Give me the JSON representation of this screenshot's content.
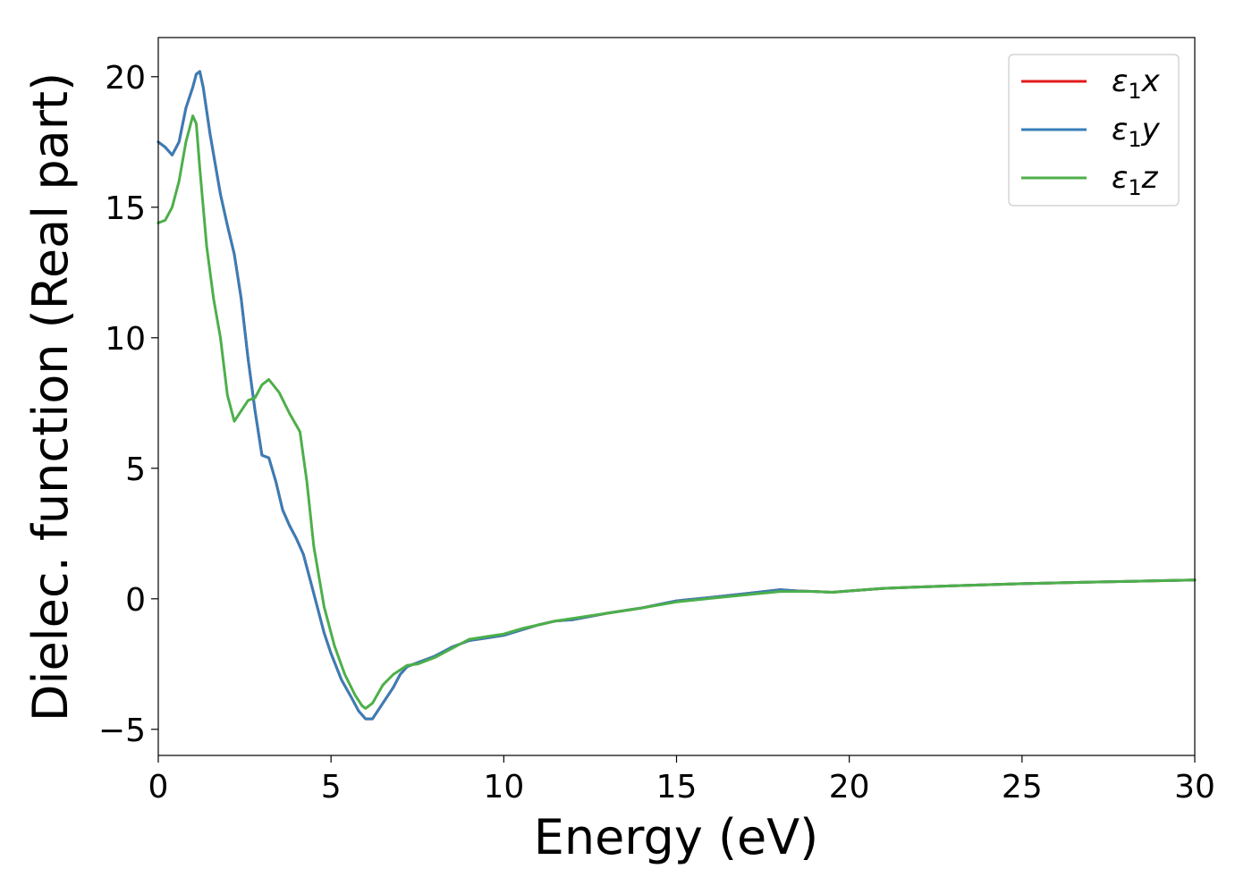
{
  "chart_data": {
    "type": "line",
    "xlabel": "Energy (eV)",
    "ylabel": "Dielec. function (Real part)",
    "xlim": [
      0,
      30
    ],
    "ylim": [
      -6,
      21.5
    ],
    "xticks": [
      0,
      5,
      10,
      15,
      20,
      25,
      30
    ],
    "yticks": [
      -5,
      0,
      5,
      10,
      15,
      20
    ],
    "ytick_labels": [
      "−5",
      "0",
      "5",
      "10",
      "15",
      "20"
    ],
    "grid": false,
    "legend_position": "top-right",
    "series": [
      {
        "name": "ε1x",
        "legend": {
          "base": "ε",
          "sub": "1",
          "tail": "x"
        },
        "color": "#e41a1c",
        "points": [
          [
            0,
            17.5
          ],
          [
            0.2,
            17.3
          ],
          [
            0.4,
            17.0
          ],
          [
            0.6,
            17.5
          ],
          [
            0.8,
            18.8
          ],
          [
            1.0,
            19.6
          ],
          [
            1.1,
            20.1
          ],
          [
            1.2,
            20.2
          ],
          [
            1.3,
            19.6
          ],
          [
            1.5,
            17.8
          ],
          [
            1.8,
            15.5
          ],
          [
            2.0,
            14.3
          ],
          [
            2.2,
            13.2
          ],
          [
            2.4,
            11.5
          ],
          [
            2.6,
            9.2
          ],
          [
            2.8,
            7.2
          ],
          [
            3.0,
            5.5
          ],
          [
            3.2,
            5.4
          ],
          [
            3.4,
            4.5
          ],
          [
            3.6,
            3.4
          ],
          [
            3.8,
            2.8
          ],
          [
            4.0,
            2.3
          ],
          [
            4.2,
            1.7
          ],
          [
            4.5,
            0.2
          ],
          [
            4.8,
            -1.3
          ],
          [
            5.0,
            -2.1
          ],
          [
            5.3,
            -3.1
          ],
          [
            5.6,
            -3.8
          ],
          [
            5.8,
            -4.3
          ],
          [
            6.0,
            -4.6
          ],
          [
            6.2,
            -4.6
          ],
          [
            6.5,
            -4.0
          ],
          [
            6.8,
            -3.4
          ],
          [
            7.0,
            -2.9
          ],
          [
            7.2,
            -2.6
          ],
          [
            7.5,
            -2.45
          ],
          [
            8.0,
            -2.2
          ],
          [
            8.5,
            -1.85
          ],
          [
            9.0,
            -1.6
          ],
          [
            9.5,
            -1.5
          ],
          [
            10.0,
            -1.4
          ],
          [
            10.5,
            -1.2
          ],
          [
            11.0,
            -1.0
          ],
          [
            11.5,
            -0.85
          ],
          [
            12.0,
            -0.8
          ],
          [
            13.0,
            -0.55
          ],
          [
            14.0,
            -0.35
          ],
          [
            15.0,
            -0.08
          ],
          [
            16.0,
            0.05
          ],
          [
            17.0,
            0.2
          ],
          [
            18.0,
            0.35
          ],
          [
            18.5,
            0.3
          ],
          [
            19.0,
            0.28
          ],
          [
            19.5,
            0.25
          ],
          [
            20.0,
            0.3
          ],
          [
            21.0,
            0.4
          ],
          [
            23.0,
            0.5
          ],
          [
            25.0,
            0.58
          ],
          [
            27.0,
            0.64
          ],
          [
            30.0,
            0.72
          ]
        ]
      },
      {
        "name": "ε1y",
        "legend": {
          "base": "ε",
          "sub": "1",
          "tail": "y"
        },
        "color": "#377eb8",
        "points": [
          [
            0,
            17.5
          ],
          [
            0.2,
            17.3
          ],
          [
            0.4,
            17.0
          ],
          [
            0.6,
            17.5
          ],
          [
            0.8,
            18.8
          ],
          [
            1.0,
            19.6
          ],
          [
            1.1,
            20.1
          ],
          [
            1.2,
            20.2
          ],
          [
            1.3,
            19.6
          ],
          [
            1.5,
            17.8
          ],
          [
            1.8,
            15.5
          ],
          [
            2.0,
            14.3
          ],
          [
            2.2,
            13.2
          ],
          [
            2.4,
            11.5
          ],
          [
            2.6,
            9.2
          ],
          [
            2.8,
            7.2
          ],
          [
            3.0,
            5.5
          ],
          [
            3.2,
            5.4
          ],
          [
            3.4,
            4.5
          ],
          [
            3.6,
            3.4
          ],
          [
            3.8,
            2.8
          ],
          [
            4.0,
            2.3
          ],
          [
            4.2,
            1.7
          ],
          [
            4.5,
            0.2
          ],
          [
            4.8,
            -1.3
          ],
          [
            5.0,
            -2.1
          ],
          [
            5.3,
            -3.1
          ],
          [
            5.6,
            -3.8
          ],
          [
            5.8,
            -4.3
          ],
          [
            6.0,
            -4.6
          ],
          [
            6.2,
            -4.6
          ],
          [
            6.5,
            -4.0
          ],
          [
            6.8,
            -3.4
          ],
          [
            7.0,
            -2.9
          ],
          [
            7.2,
            -2.6
          ],
          [
            7.5,
            -2.45
          ],
          [
            8.0,
            -2.2
          ],
          [
            8.5,
            -1.85
          ],
          [
            9.0,
            -1.6
          ],
          [
            9.5,
            -1.5
          ],
          [
            10.0,
            -1.4
          ],
          [
            10.5,
            -1.2
          ],
          [
            11.0,
            -1.0
          ],
          [
            11.5,
            -0.85
          ],
          [
            12.0,
            -0.8
          ],
          [
            13.0,
            -0.55
          ],
          [
            14.0,
            -0.35
          ],
          [
            15.0,
            -0.08
          ],
          [
            16.0,
            0.05
          ],
          [
            17.0,
            0.2
          ],
          [
            18.0,
            0.35
          ],
          [
            18.5,
            0.3
          ],
          [
            19.0,
            0.28
          ],
          [
            19.5,
            0.25
          ],
          [
            20.0,
            0.3
          ],
          [
            21.0,
            0.4
          ],
          [
            23.0,
            0.5
          ],
          [
            25.0,
            0.58
          ],
          [
            27.0,
            0.64
          ],
          [
            30.0,
            0.72
          ]
        ]
      },
      {
        "name": "ε1z",
        "legend": {
          "base": "ε",
          "sub": "1",
          "tail": "z"
        },
        "color": "#4daf4a",
        "points": [
          [
            0,
            14.4
          ],
          [
            0.2,
            14.5
          ],
          [
            0.4,
            15.0
          ],
          [
            0.6,
            16.0
          ],
          [
            0.8,
            17.5
          ],
          [
            1.0,
            18.5
          ],
          [
            1.1,
            18.2
          ],
          [
            1.2,
            16.5
          ],
          [
            1.4,
            13.5
          ],
          [
            1.6,
            11.5
          ],
          [
            1.8,
            10.0
          ],
          [
            2.0,
            7.8
          ],
          [
            2.2,
            6.8
          ],
          [
            2.4,
            7.2
          ],
          [
            2.6,
            7.6
          ],
          [
            2.8,
            7.7
          ],
          [
            3.0,
            8.2
          ],
          [
            3.2,
            8.4
          ],
          [
            3.5,
            7.9
          ],
          [
            3.8,
            7.1
          ],
          [
            4.1,
            6.4
          ],
          [
            4.3,
            4.5
          ],
          [
            4.5,
            2.0
          ],
          [
            4.8,
            -0.3
          ],
          [
            5.1,
            -1.8
          ],
          [
            5.4,
            -2.9
          ],
          [
            5.7,
            -3.7
          ],
          [
            5.9,
            -4.1
          ],
          [
            6.0,
            -4.2
          ],
          [
            6.2,
            -4.0
          ],
          [
            6.5,
            -3.3
          ],
          [
            6.8,
            -2.9
          ],
          [
            7.2,
            -2.55
          ],
          [
            7.5,
            -2.5
          ],
          [
            8.0,
            -2.25
          ],
          [
            8.5,
            -1.9
          ],
          [
            9.0,
            -1.55
          ],
          [
            9.5,
            -1.45
          ],
          [
            10.0,
            -1.35
          ],
          [
            10.5,
            -1.15
          ],
          [
            11.0,
            -1.0
          ],
          [
            11.5,
            -0.85
          ],
          [
            12.0,
            -0.75
          ],
          [
            13.0,
            -0.55
          ],
          [
            14.0,
            -0.35
          ],
          [
            15.0,
            -0.12
          ],
          [
            16.0,
            0.02
          ],
          [
            17.0,
            0.15
          ],
          [
            18.0,
            0.28
          ],
          [
            19.0,
            0.28
          ],
          [
            19.5,
            0.25
          ],
          [
            20.0,
            0.3
          ],
          [
            21.0,
            0.4
          ],
          [
            23.0,
            0.5
          ],
          [
            25.0,
            0.58
          ],
          [
            27.0,
            0.64
          ],
          [
            30.0,
            0.72
          ]
        ]
      }
    ]
  }
}
